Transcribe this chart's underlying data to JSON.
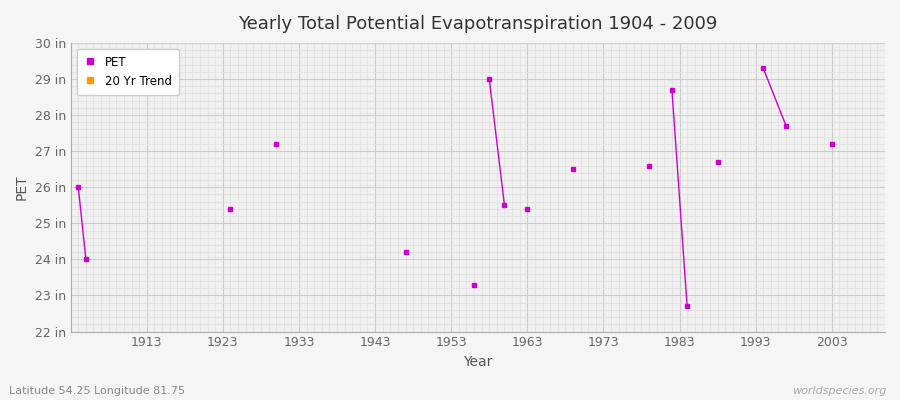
{
  "title": "Yearly Total Potential Evapotranspiration 1904 - 2009",
  "xlabel": "Year",
  "ylabel": "PET",
  "background_color": "#f5f5f5",
  "plot_bg_color": "#f0f0f0",
  "grid_color_major": "#cccccc",
  "grid_color_minor": "#e0e0e0",
  "pet_color": "#cc00cc",
  "trend_color": "#ff9900",
  "ylim_bottom": 22,
  "ylim_top": 30,
  "ytick_labels": [
    "22 in",
    "23 in",
    "24 in",
    "25 in",
    "26 in",
    "27 in",
    "28 in",
    "29 in",
    "30 in"
  ],
  "ytick_values": [
    22,
    23,
    24,
    25,
    26,
    27,
    28,
    29,
    30
  ],
  "xlim_left": 1903,
  "xlim_right": 2010,
  "xtick_values": [
    1913,
    1923,
    1933,
    1943,
    1953,
    1963,
    1973,
    1983,
    1993,
    2003
  ],
  "watermark": "worldspecies.org",
  "footnote": "Latitude 54.25 Longitude 81.75",
  "pet_data": [
    [
      1904,
      26.0
    ],
    [
      1905,
      24.0
    ],
    [
      1924,
      25.4
    ],
    [
      1930,
      27.2
    ],
    [
      1947,
      24.2
    ],
    [
      1956,
      23.3
    ],
    [
      1958,
      29.0
    ],
    [
      1960,
      25.5
    ],
    [
      1963,
      25.4
    ],
    [
      1969,
      26.5
    ],
    [
      1979,
      26.6
    ],
    [
      1982,
      28.7
    ],
    [
      1984,
      22.7
    ],
    [
      1988,
      26.7
    ],
    [
      1994,
      29.3
    ],
    [
      1997,
      27.7
    ],
    [
      2003,
      27.2
    ]
  ],
  "connected_segments": [
    [
      [
        1904,
        26.0
      ],
      [
        1905,
        24.0
      ]
    ],
    [
      [
        1958,
        29.0
      ],
      [
        1960,
        25.5
      ]
    ],
    [
      [
        1982,
        28.7
      ],
      [
        1984,
        22.7
      ]
    ],
    [
      [
        1994,
        29.3
      ],
      [
        1997,
        27.7
      ]
    ]
  ]
}
